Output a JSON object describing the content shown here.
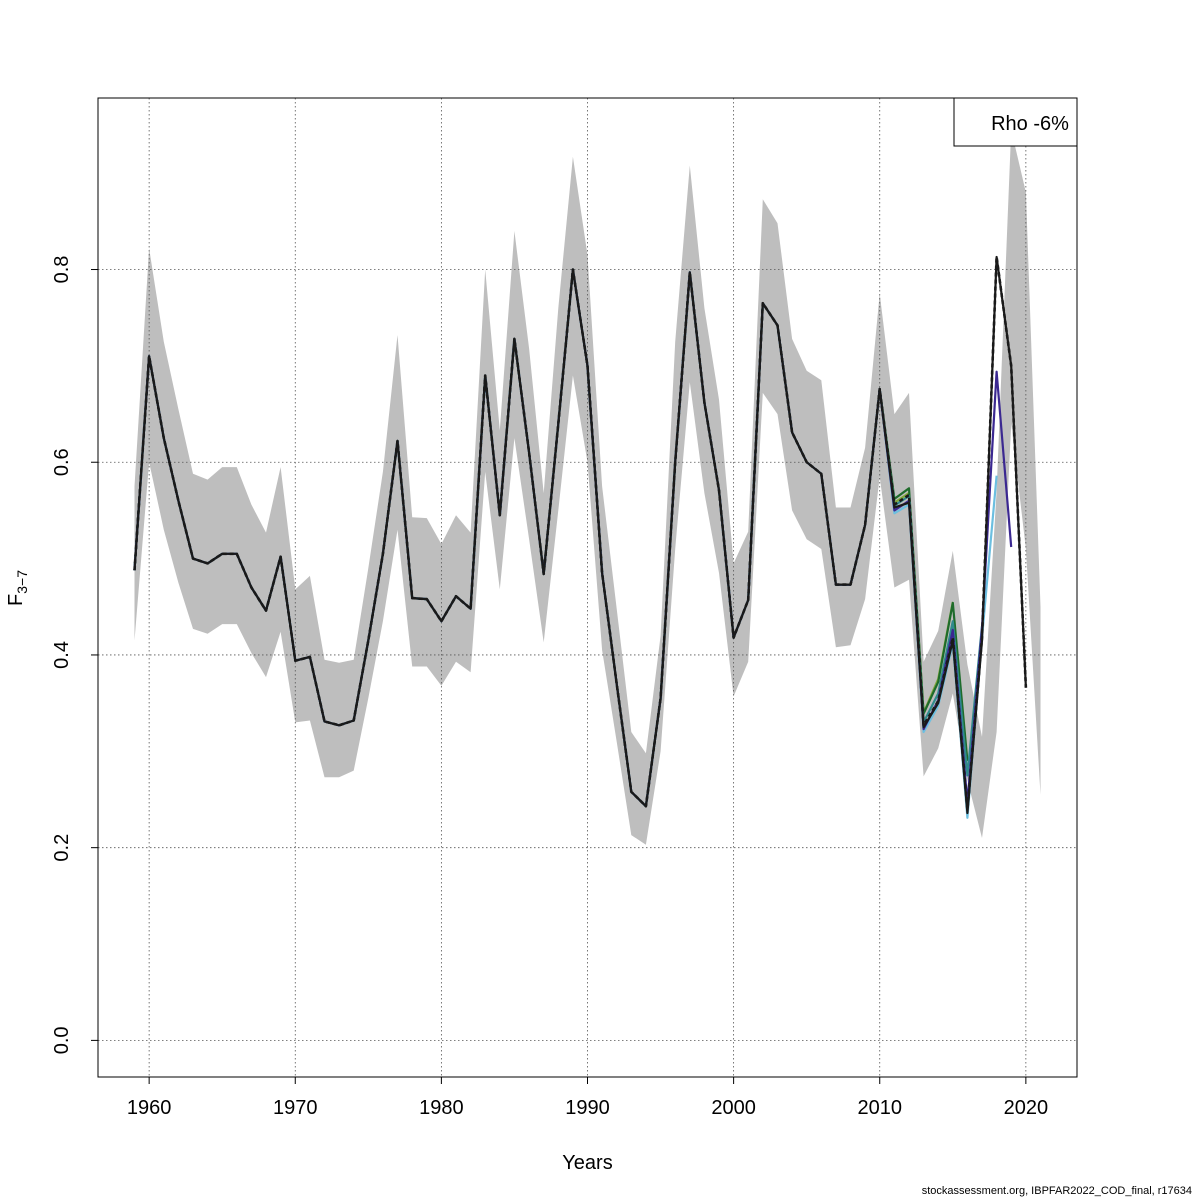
{
  "chart_data": {
    "type": "line",
    "xlabel": "Years",
    "ylabel_main": "F",
    "ylabel_sub": "3−7",
    "legend_text": "Rho -6%",
    "legend_position": "top-right",
    "grid": true,
    "xlim": [
      1956.5,
      2023.5
    ],
    "ylim": [
      -0.038,
      0.978
    ],
    "x_ticks": [
      1960,
      1970,
      1980,
      1990,
      2000,
      2010,
      2020
    ],
    "x_tick_labels": [
      "1960",
      "1970",
      "1980",
      "1990",
      "2000",
      "2010",
      "2020"
    ],
    "y_ticks": [
      0.0,
      0.2,
      0.4,
      0.6,
      0.8
    ],
    "y_tick_labels": [
      "0.0",
      "0.2",
      "0.4",
      "0.6",
      "0.8"
    ],
    "band_color": "#bebebe",
    "base_years_start": 1959,
    "base_values": [
      0.488,
      0.71,
      0.625,
      0.56,
      0.5,
      0.495,
      0.505,
      0.505,
      0.47,
      0.446,
      0.502,
      0.394,
      0.398,
      0.331,
      0.327,
      0.332,
      0.415,
      0.505,
      0.622,
      0.459,
      0.458,
      0.435,
      0.461,
      0.448,
      0.69,
      0.545,
      0.728,
      0.61,
      0.484,
      0.64,
      0.8,
      0.7,
      0.485,
      0.37,
      0.258,
      0.243,
      0.355,
      0.6,
      0.797,
      0.662,
      0.571,
      0.418,
      0.457,
      0.765,
      0.742,
      0.631,
      0.6,
      0.588,
      0.473,
      0.473,
      0.535,
      0.676
    ],
    "band_lower": [
      0.415,
      0.6,
      0.53,
      0.475,
      0.427,
      0.422,
      0.432,
      0.432,
      0.402,
      0.377,
      0.424,
      0.33,
      0.332,
      0.273,
      0.273,
      0.28,
      0.355,
      0.435,
      0.53,
      0.388,
      0.388,
      0.368,
      0.393,
      0.382,
      0.59,
      0.468,
      0.625,
      0.52,
      0.413,
      0.55,
      0.69,
      0.6,
      0.405,
      0.31,
      0.213,
      0.203,
      0.3,
      0.51,
      0.683,
      0.568,
      0.485,
      0.357,
      0.393,
      0.672,
      0.65,
      0.55,
      0.52,
      0.51,
      0.408,
      0.41,
      0.458,
      0.585,
      0.47,
      0.478,
      0.274,
      0.303,
      0.36,
      0.27,
      0.21,
      0.32,
      0.64,
      0.51,
      0.255
    ],
    "band_upper": [
      0.575,
      0.822,
      0.725,
      0.655,
      0.588,
      0.582,
      0.595,
      0.595,
      0.556,
      0.527,
      0.595,
      0.468,
      0.482,
      0.395,
      0.392,
      0.395,
      0.49,
      0.59,
      0.732,
      0.543,
      0.542,
      0.515,
      0.545,
      0.527,
      0.8,
      0.633,
      0.84,
      0.718,
      0.568,
      0.76,
      0.917,
      0.815,
      0.575,
      0.448,
      0.32,
      0.298,
      0.42,
      0.725,
      0.908,
      0.76,
      0.665,
      0.495,
      0.528,
      0.873,
      0.848,
      0.728,
      0.695,
      0.685,
      0.553,
      0.553,
      0.615,
      0.775,
      0.65,
      0.672,
      0.393,
      0.425,
      0.508,
      0.39,
      0.315,
      0.57,
      0.945,
      0.88,
      0.45
    ],
    "series": [
      {
        "color": "#1a1a1a",
        "dashed": true,
        "tail": [
          0.556,
          0.566,
          0.327,
          0.352,
          0.418,
          0.239,
          0.418,
          0.813,
          0.7,
          0.366
        ]
      },
      {
        "color": "#1a1a1a",
        "dashed": false,
        "tail": [
          0.553,
          0.558,
          0.325,
          0.35,
          0.415,
          0.236,
          0.415,
          0.813,
          0.7,
          0.366
        ]
      },
      {
        "color": "#3b2891",
        "dashed": false,
        "tail": [
          0.55,
          0.56,
          0.323,
          0.353,
          0.426,
          0.247,
          0.428,
          0.694,
          0.512
        ]
      },
      {
        "color": "#6cbfe0",
        "dashed": false,
        "tail": [
          0.547,
          0.556,
          0.32,
          0.347,
          0.412,
          0.231,
          0.418,
          0.586
        ]
      },
      {
        "color": "#2f8a8c",
        "dashed": false,
        "tail": [
          0.555,
          0.565,
          0.33,
          0.36,
          0.435,
          0.275,
          0.43
        ]
      },
      {
        "color": "#1e6b2b",
        "dashed": false,
        "tail": [
          0.562,
          0.573,
          0.339,
          0.372,
          0.454,
          0.29
        ]
      },
      {
        "color": "#7fa83a",
        "dashed": false,
        "tail": [
          0.558,
          0.568,
          0.34,
          0.375,
          0.455
        ]
      }
    ]
  },
  "footer_text": "stockassessment.org, IBPFAR2022_COD_final, r17634"
}
